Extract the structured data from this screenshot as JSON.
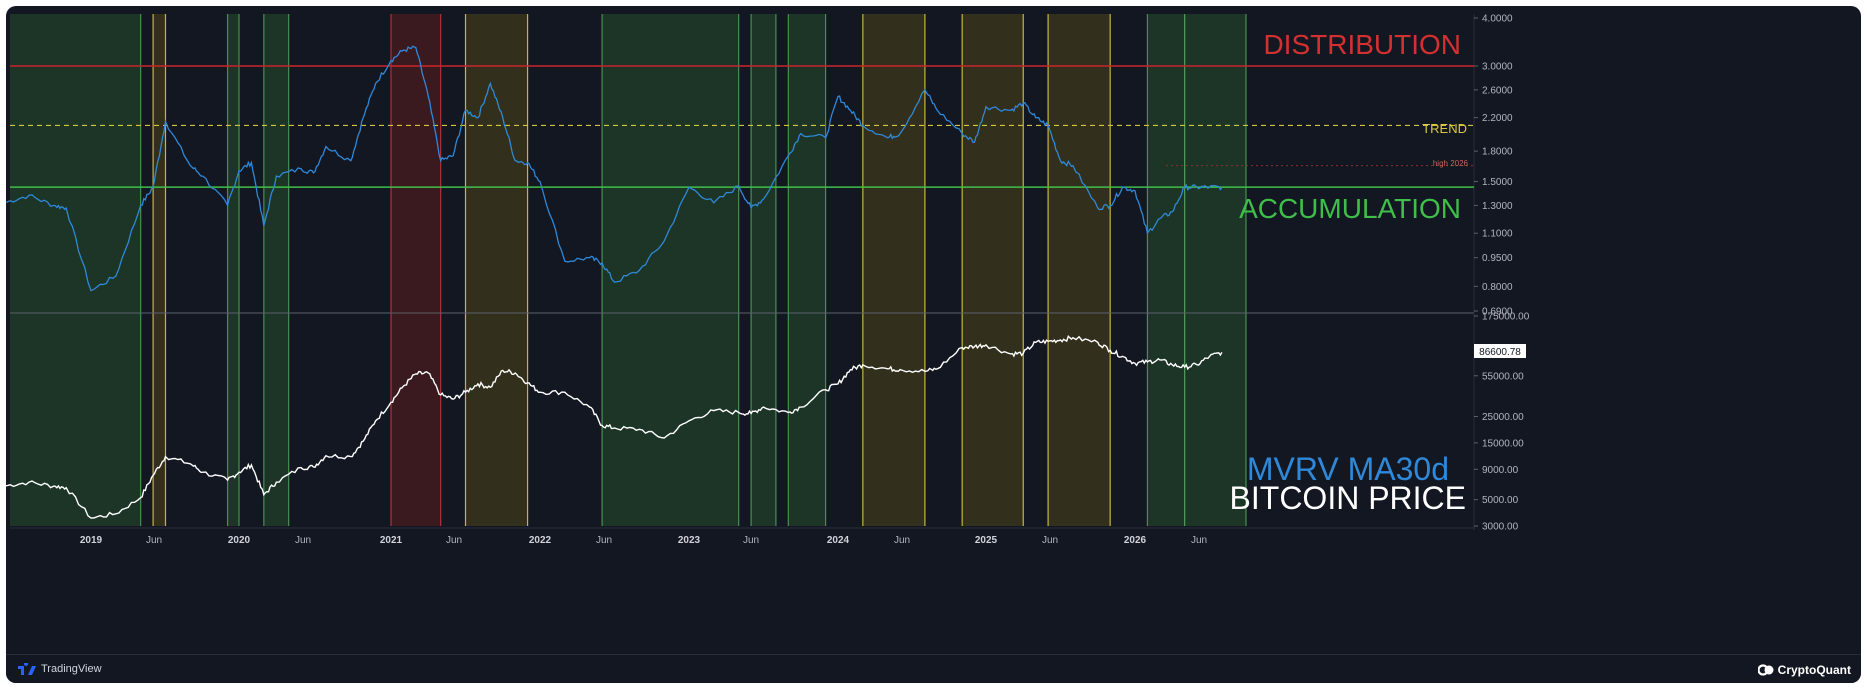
{
  "annotations": {
    "distribution": "DISTRIBUTION",
    "trend": "TREND",
    "high_note": "high 2026",
    "accumulation": "ACCUMULATION",
    "mvrv_legend": "MVRV MA30d",
    "price_legend": "BITCOIN PRICE",
    "last_price": "86600.78"
  },
  "branding": {
    "left": "TradingView",
    "right": "CryptoQuant"
  },
  "colors": {
    "background": "#131722",
    "mvrv_line": "#2f88d8",
    "price_line": "#ffffff",
    "distribution_line": "#c9252a",
    "trend_line": "#d4c53a",
    "accumulation_line": "#3fbf4a",
    "green_band": "#20402a",
    "yellow_band": "#3d3a1c",
    "red_band": "#4a1c1f"
  },
  "chart_data": [
    {
      "type": "line",
      "name": "MVRV MA30d",
      "scale": "log",
      "ylim": [
        0.69,
        4.0
      ],
      "y_ticks": [
        "4.0000",
        "3.0000",
        "2.6000",
        "2.2000",
        "1.8000",
        "1.5000",
        "1.3000",
        "1.1000",
        "0.9500",
        "0.8000",
        "0.6900"
      ],
      "y_tick_values": [
        4.0,
        3.0,
        2.6,
        2.2,
        1.8,
        1.5,
        1.3,
        1.1,
        0.95,
        0.8,
        0.69
      ],
      "levels": {
        "distribution": 3.0,
        "trend": 2.1,
        "high_2026": 1.65,
        "accumulation": 1.45
      },
      "x": [
        "2018-06",
        "2018-08",
        "2018-10",
        "2018-11",
        "2019-01",
        "2019-03",
        "2019-05",
        "2019-06",
        "2019-07",
        "2019-09",
        "2019-10",
        "2019-12",
        "2020-01",
        "2020-02",
        "2020-03",
        "2020-04",
        "2020-06",
        "2020-07",
        "2020-08",
        "2020-10",
        "2020-11",
        "2020-12",
        "2021-01",
        "2021-02",
        "2021-03",
        "2021-04",
        "2021-05",
        "2021-06",
        "2021-07",
        "2021-08",
        "2021-09",
        "2021-10",
        "2021-11",
        "2021-12",
        "2022-01",
        "2022-03",
        "2022-05",
        "2022-06",
        "2022-07",
        "2022-09",
        "2022-11",
        "2023-01",
        "2023-03",
        "2023-05",
        "2023-06",
        "2023-07",
        "2023-09",
        "2023-10",
        "2023-12",
        "2024-01",
        "2024-02",
        "2024-03",
        "2024-05",
        "2024-06",
        "2024-08",
        "2024-09",
        "2024-11",
        "2024-12",
        "2025-01",
        "2025-03",
        "2025-04",
        "2025-05",
        "2025-06",
        "2025-07",
        "2025-08",
        "2025-10",
        "2025-11",
        "2025-12",
        "2026-01",
        "2026-02",
        "2026-03",
        "2026-04",
        "2026-05",
        "2026-06",
        "2026-07",
        "2026-08"
      ],
      "values": [
        1.32,
        1.38,
        1.3,
        1.28,
        0.78,
        0.85,
        1.3,
        1.45,
        2.15,
        1.65,
        1.55,
        1.3,
        1.6,
        1.68,
        1.15,
        1.55,
        1.62,
        1.58,
        1.85,
        1.7,
        2.2,
        2.7,
        3.1,
        3.3,
        3.35,
        2.5,
        1.7,
        1.75,
        2.3,
        2.2,
        2.7,
        2.2,
        1.7,
        1.68,
        1.5,
        0.93,
        0.95,
        0.92,
        0.82,
        0.88,
        1.05,
        1.45,
        1.32,
        1.46,
        1.28,
        1.35,
        1.75,
        2.0,
        1.95,
        2.5,
        2.3,
        2.1,
        1.95,
        2.0,
        2.6,
        2.3,
        2.0,
        1.9,
        2.35,
        2.3,
        2.4,
        2.2,
        2.1,
        1.7,
        1.65,
        1.28,
        1.3,
        1.45,
        1.42,
        1.1,
        1.2,
        1.25,
        1.45,
        1.45,
        1.45,
        1.45
      ]
    },
    {
      "type": "line",
      "name": "BITCOIN PRICE",
      "scale": "log",
      "ylim": [
        3000,
        175000
      ],
      "y_ticks": [
        "175000.00",
        "55000.00",
        "25000.00",
        "15000.00",
        "9000.00",
        "5000.00",
        "3000.00"
      ],
      "y_tick_values": [
        175000,
        55000,
        25000,
        15000,
        9000,
        5000,
        3000
      ],
      "last_value": 86600.78,
      "x": [
        "2018-06",
        "2018-08",
        "2018-10",
        "2018-11",
        "2019-01",
        "2019-03",
        "2019-05",
        "2019-06",
        "2019-07",
        "2019-09",
        "2019-10",
        "2019-12",
        "2020-01",
        "2020-02",
        "2020-03",
        "2020-04",
        "2020-06",
        "2020-07",
        "2020-08",
        "2020-10",
        "2020-11",
        "2020-12",
        "2021-01",
        "2021-02",
        "2021-03",
        "2021-04",
        "2021-05",
        "2021-06",
        "2021-07",
        "2021-08",
        "2021-09",
        "2021-10",
        "2021-11",
        "2021-12",
        "2022-01",
        "2022-03",
        "2022-05",
        "2022-06",
        "2022-07",
        "2022-09",
        "2022-11",
        "2023-01",
        "2023-03",
        "2023-05",
        "2023-06",
        "2023-07",
        "2023-09",
        "2023-10",
        "2023-12",
        "2024-01",
        "2024-02",
        "2024-03",
        "2024-05",
        "2024-06",
        "2024-08",
        "2024-09",
        "2024-11",
        "2024-12",
        "2025-01",
        "2025-03",
        "2025-04",
        "2025-05",
        "2025-06",
        "2025-07",
        "2025-08",
        "2025-10",
        "2025-11",
        "2025-12",
        "2026-01",
        "2026-02",
        "2026-03",
        "2026-04",
        "2026-05",
        "2026-06",
        "2026-07",
        "2026-08"
      ],
      "values": [
        6500,
        7000,
        6500,
        6300,
        3500,
        3800,
        5200,
        8000,
        11500,
        10000,
        8500,
        7300,
        8500,
        9800,
        5500,
        7000,
        9300,
        9400,
        11700,
        11500,
        15500,
        23000,
        33000,
        45000,
        57000,
        58000,
        38000,
        35000,
        40000,
        47000,
        44000,
        61000,
        58000,
        48000,
        40000,
        40000,
        30000,
        21000,
        20000,
        19500,
        16500,
        23000,
        28000,
        27000,
        26500,
        30000,
        27000,
        30000,
        42000,
        47000,
        62000,
        68000,
        63000,
        62000,
        60000,
        63000,
        95000,
        97000,
        100000,
        84000,
        85000,
        105000,
        107000,
        110000,
        115000,
        105000,
        90000,
        80000,
        70000,
        72000,
        75000,
        68000,
        65000,
        68000,
        80000,
        86600
      ]
    }
  ],
  "x_axis": {
    "labels": [
      "2019",
      "Jun",
      "2020",
      "Jun",
      "2021",
      "Jun",
      "2022",
      "Jun",
      "2023",
      "Jun",
      "2024",
      "Jun",
      "2025",
      "Jun",
      "2026",
      "Jun"
    ]
  }
}
